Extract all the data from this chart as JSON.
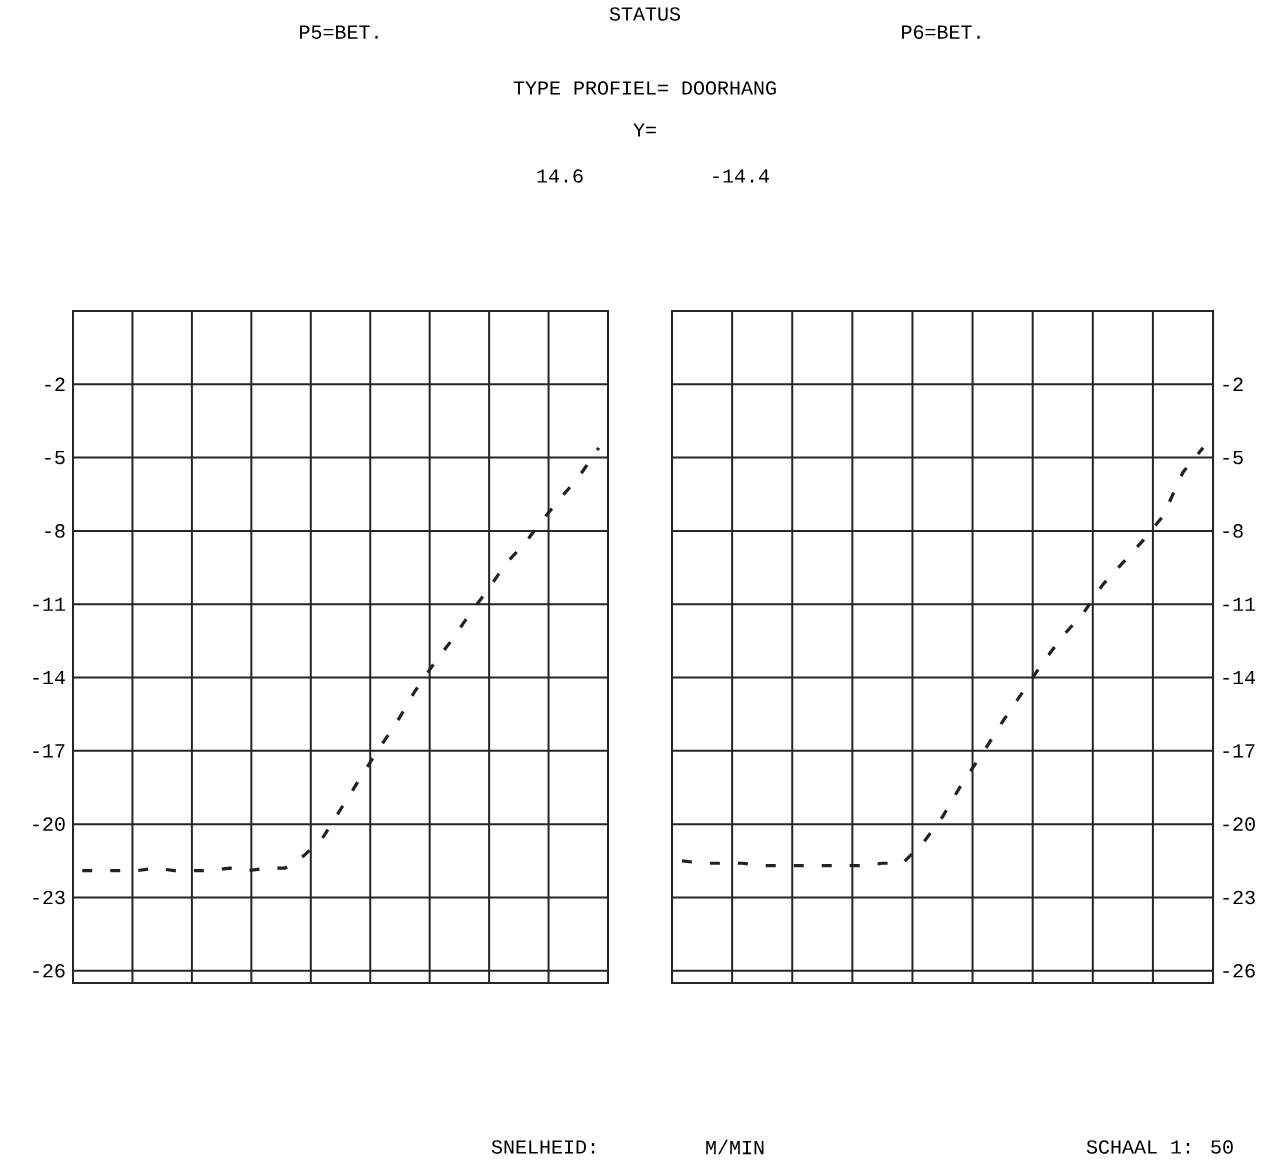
{
  "chart_data": [
    {
      "type": "line",
      "title": "P5=BET.",
      "annotations": [
        "STATUS",
        "TYPE PROFIEL= DOORHANG",
        "Y=",
        "14.6",
        "SNELHEID:",
        "M/MIN",
        "SCHAAL 1: 50"
      ],
      "categories": [
        null,
        null,
        null,
        null,
        null,
        null,
        null,
        null,
        null,
        null,
        null,
        null,
        null,
        null,
        null,
        null,
        null,
        null,
        null,
        null,
        null,
        null,
        null,
        null,
        null,
        null,
        null,
        null,
        null
      ],
      "series": [
        {
          "color": "#222222",
          "line_style": "dashed",
          "values": [
            -21.9,
            -21.9,
            -21.9,
            -21.9,
            -21.8,
            -21.9,
            -21.9,
            -21.9,
            -21.8,
            -21.9,
            -21.8,
            -21.8,
            -21.3,
            -20.6,
            -19.4,
            -18.2,
            -17.0,
            -15.9,
            -14.6,
            -13.5,
            -12.5,
            -11.4,
            -10.4,
            -9.3,
            -8.5,
            -7.5,
            -6.6,
            -5.7,
            -4.6
          ]
        }
      ],
      "ylim": [
        -26.5,
        1
      ],
      "yticks": [
        -2,
        -5,
        -8,
        -11,
        -14,
        -17,
        -20,
        -23,
        -26
      ],
      "grid": true,
      "tick_labels": "y"
    },
    {
      "type": "line",
      "title": "P6=BET.",
      "annotations": [
        "-14.4"
      ],
      "categories": [
        null,
        null,
        null,
        null,
        null,
        null,
        null,
        null,
        null,
        null,
        null,
        null,
        null,
        null,
        null,
        null,
        null,
        null,
        null,
        null,
        null,
        null,
        null,
        null,
        null,
        null,
        null
      ],
      "series": [
        {
          "color": "#222222",
          "line_style": "dashed",
          "values": [
            -21.5,
            -21.6,
            -21.6,
            -21.6,
            -21.7,
            -21.7,
            -21.7,
            -21.7,
            -21.7,
            -21.7,
            -21.6,
            -21.6,
            -20.8,
            -19.7,
            -18.3,
            -17.1,
            -15.8,
            -14.6,
            -13.4,
            -12.3,
            -11.4,
            -10.2,
            -9.3,
            -8.4,
            -7.4,
            -5.6,
            -4.6
          ]
        }
      ],
      "ylim": [
        -26.5,
        1
      ],
      "yticks": [
        -2,
        -5,
        -8,
        -11,
        -14,
        -17,
        -20,
        -23,
        -26
      ],
      "grid": true,
      "tick_labels": "y"
    }
  ]
}
